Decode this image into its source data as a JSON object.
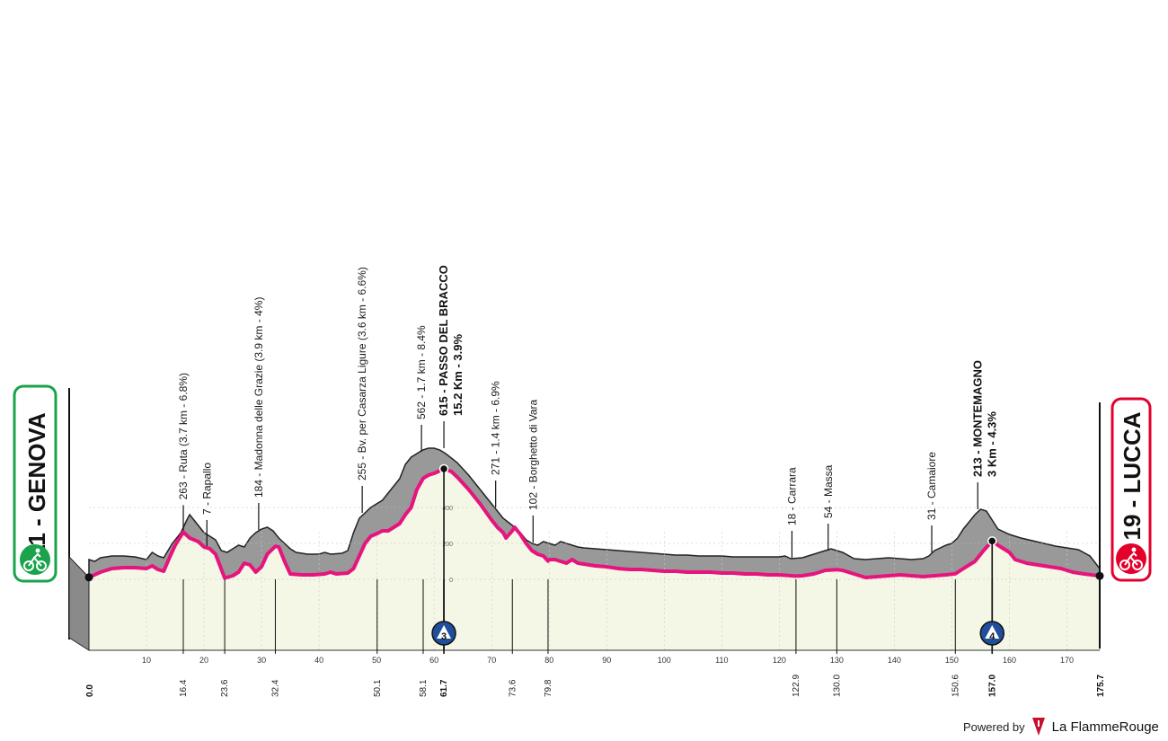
{
  "start": {
    "label": "11 - GENOVA",
    "km": "0.0",
    "elev": 11,
    "color": "#1aa34a"
  },
  "finish": {
    "label": "19 - LUCCA",
    "km": "175.7",
    "elev": 19,
    "color": "#e3002b"
  },
  "colors": {
    "road": "#e6147d",
    "terrain": "#999999",
    "ground": "#f4f6e6"
  },
  "profile": {
    "axis_ticks": [
      "10",
      "20",
      "30",
      "40",
      "50",
      "60",
      "70",
      "80",
      "90",
      "100",
      "110",
      "120",
      "130",
      "140",
      "150",
      "160",
      "170"
    ],
    "axis_values": [
      10,
      20,
      30,
      40,
      50,
      60,
      70,
      80,
      90,
      100,
      110,
      120,
      130,
      140,
      150,
      160,
      170
    ],
    "elev_ticks": [
      "0",
      "200",
      "400"
    ],
    "elev_values": [
      0,
      200,
      400
    ],
    "road": [
      [
        0,
        11
      ],
      [
        2,
        40
      ],
      [
        4,
        60
      ],
      [
        6,
        65
      ],
      [
        8,
        65
      ],
      [
        10,
        60
      ],
      [
        11,
        75
      ],
      [
        12,
        55
      ],
      [
        13,
        45
      ],
      [
        14,
        120
      ],
      [
        15,
        190
      ],
      [
        16.4,
        263
      ],
      [
        17.5,
        230
      ],
      [
        19,
        210
      ],
      [
        20,
        180
      ],
      [
        21,
        170
      ],
      [
        22,
        140
      ],
      [
        23.6,
        7
      ],
      [
        25,
        20
      ],
      [
        26,
        40
      ],
      [
        27,
        90
      ],
      [
        28,
        80
      ],
      [
        29,
        40
      ],
      [
        30,
        70
      ],
      [
        31,
        140
      ],
      [
        32.4,
        184
      ],
      [
        33,
        180
      ],
      [
        34,
        100
      ],
      [
        35,
        30
      ],
      [
        37,
        25
      ],
      [
        39,
        25
      ],
      [
        41,
        30
      ],
      [
        42,
        40
      ],
      [
        43,
        30
      ],
      [
        45,
        35
      ],
      [
        46,
        60
      ],
      [
        47,
        130
      ],
      [
        48,
        200
      ],
      [
        49,
        240
      ],
      [
        50.1,
        255
      ],
      [
        51,
        270
      ],
      [
        52,
        270
      ],
      [
        53,
        290
      ],
      [
        54,
        310
      ],
      [
        55,
        360
      ],
      [
        56,
        400
      ],
      [
        57,
        500
      ],
      [
        58.1,
        562
      ],
      [
        59,
        580
      ],
      [
        60,
        590
      ],
      [
        61.7,
        615
      ],
      [
        63,
        600
      ],
      [
        64,
        570
      ],
      [
        66,
        500
      ],
      [
        68,
        420
      ],
      [
        70,
        330
      ],
      [
        71,
        290
      ],
      [
        72,
        260
      ],
      [
        72.5,
        230
      ],
      [
        73.6,
        271
      ],
      [
        74,
        290
      ],
      [
        75,
        250
      ],
      [
        76,
        200
      ],
      [
        77,
        160
      ],
      [
        78,
        140
      ],
      [
        79,
        130
      ],
      [
        79.8,
        102
      ],
      [
        80,
        110
      ],
      [
        81,
        110
      ],
      [
        82,
        100
      ],
      [
        83,
        90
      ],
      [
        84,
        110
      ],
      [
        85,
        90
      ],
      [
        86,
        85
      ],
      [
        88,
        75
      ],
      [
        90,
        70
      ],
      [
        92,
        60
      ],
      [
        94,
        55
      ],
      [
        96,
        55
      ],
      [
        98,
        50
      ],
      [
        100,
        45
      ],
      [
        102,
        45
      ],
      [
        104,
        40
      ],
      [
        106,
        40
      ],
      [
        108,
        40
      ],
      [
        110,
        35
      ],
      [
        112,
        35
      ],
      [
        114,
        30
      ],
      [
        116,
        30
      ],
      [
        118,
        25
      ],
      [
        120,
        25
      ],
      [
        122.9,
        18
      ],
      [
        124,
        20
      ],
      [
        126,
        30
      ],
      [
        128,
        50
      ],
      [
        130.0,
        54
      ],
      [
        131,
        50
      ],
      [
        133,
        30
      ],
      [
        135,
        10
      ],
      [
        137,
        15
      ],
      [
        139,
        20
      ],
      [
        141,
        25
      ],
      [
        143,
        20
      ],
      [
        145,
        15
      ],
      [
        147,
        20
      ],
      [
        149,
        25
      ],
      [
        150.6,
        31
      ],
      [
        152,
        60
      ],
      [
        154,
        100
      ],
      [
        155.5,
        160
      ],
      [
        157.0,
        213
      ],
      [
        158,
        190
      ],
      [
        160,
        150
      ],
      [
        161,
        110
      ],
      [
        163,
        90
      ],
      [
        165,
        80
      ],
      [
        167,
        70
      ],
      [
        169,
        60
      ],
      [
        171,
        40
      ],
      [
        173,
        30
      ],
      [
        175.7,
        19
      ]
    ],
    "terrain": [
      [
        0,
        110
      ],
      [
        1,
        100
      ],
      [
        2,
        120
      ],
      [
        4,
        130
      ],
      [
        6,
        130
      ],
      [
        8,
        125
      ],
      [
        10,
        110
      ],
      [
        11,
        150
      ],
      [
        12,
        130
      ],
      [
        13,
        120
      ],
      [
        14.5,
        200
      ],
      [
        16,
        260
      ],
      [
        17,
        330
      ],
      [
        17.5,
        360
      ],
      [
        19,
        300
      ],
      [
        20,
        260
      ],
      [
        21,
        240
      ],
      [
        22,
        220
      ],
      [
        23,
        160
      ],
      [
        24,
        150
      ],
      [
        25,
        170
      ],
      [
        26,
        190
      ],
      [
        27,
        180
      ],
      [
        28,
        230
      ],
      [
        29,
        260
      ],
      [
        30,
        280
      ],
      [
        31,
        290
      ],
      [
        32,
        270
      ],
      [
        33,
        230
      ],
      [
        34,
        200
      ],
      [
        35,
        170
      ],
      [
        36,
        150
      ],
      [
        38,
        140
      ],
      [
        40,
        140
      ],
      [
        41,
        150
      ],
      [
        42,
        140
      ],
      [
        44,
        145
      ],
      [
        45,
        160
      ],
      [
        46,
        260
      ],
      [
        47,
        340
      ],
      [
        48,
        370
      ],
      [
        49,
        400
      ],
      [
        50,
        420
      ],
      [
        51,
        440
      ],
      [
        52,
        480
      ],
      [
        53,
        520
      ],
      [
        54,
        560
      ],
      [
        55,
        640
      ],
      [
        56,
        680
      ],
      [
        57,
        700
      ],
      [
        58,
        720
      ],
      [
        59,
        730
      ],
      [
        60,
        730
      ],
      [
        61,
        720
      ],
      [
        62,
        700
      ],
      [
        64,
        650
      ],
      [
        66,
        580
      ],
      [
        68,
        500
      ],
      [
        70,
        420
      ],
      [
        71,
        380
      ],
      [
        72,
        340
      ],
      [
        73.6,
        300
      ],
      [
        75,
        260
      ],
      [
        76,
        220
      ],
      [
        77,
        200
      ],
      [
        78,
        190
      ],
      [
        79,
        210
      ],
      [
        80,
        200
      ],
      [
        81,
        190
      ],
      [
        82,
        210
      ],
      [
        83,
        200
      ],
      [
        84,
        190
      ],
      [
        85,
        180
      ],
      [
        86,
        175
      ],
      [
        88,
        170
      ],
      [
        90,
        165
      ],
      [
        92,
        160
      ],
      [
        94,
        155
      ],
      [
        96,
        150
      ],
      [
        98,
        145
      ],
      [
        100,
        140
      ],
      [
        102,
        135
      ],
      [
        104,
        135
      ],
      [
        106,
        130
      ],
      [
        108,
        130
      ],
      [
        110,
        130
      ],
      [
        112,
        125
      ],
      [
        114,
        125
      ],
      [
        116,
        125
      ],
      [
        118,
        125
      ],
      [
        120,
        125
      ],
      [
        121,
        130
      ],
      [
        122,
        115
      ],
      [
        124,
        120
      ],
      [
        126,
        140
      ],
      [
        128,
        160
      ],
      [
        129,
        170
      ],
      [
        130,
        160
      ],
      [
        131,
        150
      ],
      [
        133,
        115
      ],
      [
        135,
        110
      ],
      [
        137,
        115
      ],
      [
        139,
        120
      ],
      [
        141,
        115
      ],
      [
        143,
        110
      ],
      [
        145,
        115
      ],
      [
        146,
        130
      ],
      [
        147,
        160
      ],
      [
        149,
        190
      ],
      [
        150,
        200
      ],
      [
        151,
        230
      ],
      [
        152,
        280
      ],
      [
        153,
        320
      ],
      [
        154,
        360
      ],
      [
        155,
        390
      ],
      [
        156,
        380
      ],
      [
        157,
        330
      ],
      [
        158,
        280
      ],
      [
        160,
        250
      ],
      [
        162,
        230
      ],
      [
        164,
        215
      ],
      [
        166,
        200
      ],
      [
        168,
        185
      ],
      [
        170,
        175
      ],
      [
        172,
        165
      ],
      [
        174,
        130
      ],
      [
        175.7,
        60
      ]
    ]
  },
  "climbs": [
    {
      "km": 16.4,
      "elev": 263,
      "name": "263 - Ruta (3.7 km - 6.8%)",
      "subname": "",
      "bold": false,
      "km_label": "16.4",
      "km_bold": false
    },
    {
      "km": 20.5,
      "elev": 180,
      "name": "7 - Rapallo",
      "subname": "",
      "bold": false,
      "km_label": "",
      "km_bold": false
    },
    {
      "km": 29.5,
      "elev": 275,
      "name": "184 - Madonna delle Grazie (3.9 km - 4%)",
      "subname": "",
      "bold": false,
      "km_label": "",
      "km_bold": false
    },
    {
      "km": 47.5,
      "elev": 370,
      "name": "255 - Bv. per Casarza Ligure (3.6 km - 6.6%)",
      "subname": "",
      "bold": false,
      "km_label": "",
      "km_bold": false
    },
    {
      "km": 57.8,
      "elev": 710,
      "name": "562 - 1.7 km - 8.4%",
      "subname": "",
      "bold": false,
      "km_label": "58.1",
      "km_bold": false
    },
    {
      "km": 61.7,
      "elev": 730,
      "name": "615 - PASSO DEL BRACCO",
      "subname": "15.2 Km - 3.9%",
      "bold": true,
      "km_label": "61.7",
      "km_bold": true
    },
    {
      "km": 70.7,
      "elev": 400,
      "name": "271 - 1.4 km - 6.9%",
      "subname": "",
      "bold": false,
      "km_label": "73.6",
      "km_bold": false
    },
    {
      "km": 77.2,
      "elev": 205,
      "name": "102 - Borghetto di Vara",
      "subname": "",
      "bold": false,
      "km_label": "79.8",
      "km_bold": false
    },
    {
      "km": 122.2,
      "elev": 120,
      "name": "18 - Carrara",
      "subname": "",
      "bold": false,
      "km_label": "122.9",
      "km_bold": false
    },
    {
      "km": 128.5,
      "elev": 160,
      "name": "54 - Massa",
      "subname": "",
      "bold": false,
      "km_label": "130.0",
      "km_bold": false
    },
    {
      "km": 146.5,
      "elev": 150,
      "name": "31 - Camaiore",
      "subname": "",
      "bold": false,
      "km_label": "150.6",
      "km_bold": false
    },
    {
      "km": 154.5,
      "elev": 390,
      "name": "213 - MONTEMAGNO",
      "subname": "3 Km - 4.3%",
      "bold": true,
      "km_label": "157.0",
      "km_bold": true
    }
  ],
  "extra_km_labels": [
    {
      "km": 23.6,
      "label": "23.6"
    },
    {
      "km": 32.4,
      "label": "32.4"
    },
    {
      "km": 50.1,
      "label": "50.1"
    }
  ],
  "sprints": [
    {
      "km": 61.7,
      "elev": 615,
      "number": "3"
    },
    {
      "km": 157.0,
      "elev": 213,
      "number": "4"
    }
  ],
  "footer": {
    "powered_by": "Powered by",
    "brand": "La FlammeRouge"
  }
}
